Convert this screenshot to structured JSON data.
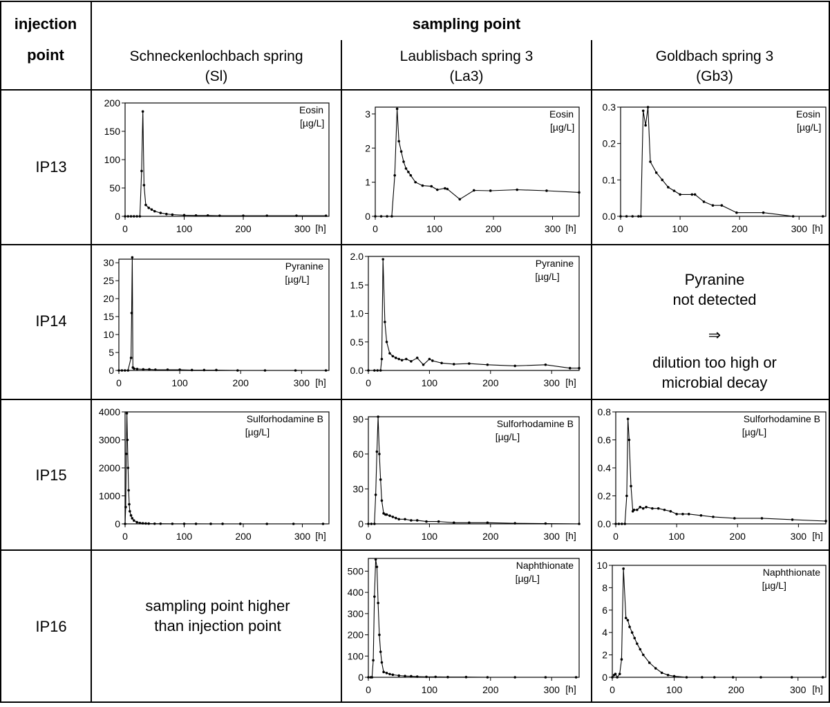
{
  "header": {
    "injection_line1": "injection",
    "injection_line2": "point",
    "sampling": "sampling point",
    "columns": [
      {
        "line1": "Schneckenlochbach spring",
        "line2": "(Sl)"
      },
      {
        "line1": "Laublisbach spring 3",
        "line2": "(La3)"
      },
      {
        "line1": "Goldbach spring 3",
        "line2": "(Gb3)"
      }
    ]
  },
  "rows": [
    {
      "label": "IP13"
    },
    {
      "label": "IP14"
    },
    {
      "label": "IP15"
    },
    {
      "label": "IP16"
    }
  ],
  "notes": {
    "pyranine_line1": "Pyranine",
    "pyranine_line2": "not detected",
    "arrow": "⇒",
    "pyranine_line3": "dilution too high or",
    "pyranine_line4": "microbial decay",
    "ip16_line1": "sampling point higher",
    "ip16_line2": "than injection point"
  },
  "chart_data": [
    {
      "id": "ip13_sl",
      "type": "line",
      "tracer": "Eosin",
      "unit": "[µg/L]",
      "xunit": "[h]",
      "xlim": [
        0,
        345
      ],
      "ylim": [
        0,
        200
      ],
      "xticks": [
        0,
        100,
        200,
        300
      ],
      "yticks": [
        0,
        50,
        100,
        150,
        200
      ],
      "x": [
        0,
        5,
        10,
        15,
        20,
        25,
        28,
        30,
        32,
        35,
        40,
        45,
        50,
        60,
        70,
        80,
        100,
        120,
        140,
        160,
        200,
        240,
        290,
        340
      ],
      "y": [
        0,
        0,
        0,
        0,
        0,
        0,
        80,
        185,
        55,
        20,
        15,
        12,
        9,
        6,
        4,
        3,
        2,
        1.5,
        1.5,
        1,
        1,
        1,
        1,
        1
      ]
    },
    {
      "id": "ip13_la3",
      "type": "line",
      "tracer": "Eosin",
      "unit": "[µg/L]",
      "xunit": "[h]",
      "xlim": [
        0,
        345
      ],
      "ylim": [
        0,
        3.2
      ],
      "xticks": [
        0,
        100,
        200,
        300
      ],
      "yticks": [
        0,
        1,
        2,
        3
      ],
      "x": [
        0,
        10,
        20,
        28,
        33,
        37,
        40,
        44,
        48,
        52,
        56,
        60,
        68,
        80,
        95,
        105,
        118,
        122,
        143,
        167,
        195,
        240,
        290,
        345
      ],
      "y": [
        0,
        0,
        0,
        0,
        1.2,
        3.15,
        2.2,
        1.9,
        1.6,
        1.4,
        1.3,
        1.2,
        1.0,
        0.9,
        0.88,
        0.78,
        0.82,
        0.8,
        0.5,
        0.76,
        0.75,
        0.78,
        0.75,
        0.7
      ]
    },
    {
      "id": "ip13_gb3",
      "type": "line",
      "tracer": "Eosin",
      "unit": "[µg/L]",
      "xunit": "[h]",
      "xlim": [
        0,
        345
      ],
      "ylim": [
        0,
        0.3
      ],
      "xticks": [
        0,
        100,
        200,
        300
      ],
      "yticks": [
        0.0,
        0.1,
        0.2,
        0.3
      ],
      "decimals": 1,
      "x": [
        0,
        10,
        20,
        30,
        34,
        38,
        42,
        46,
        50,
        60,
        70,
        80,
        90,
        100,
        120,
        125,
        140,
        155,
        170,
        195,
        240,
        290,
        340
      ],
      "y": [
        0,
        0,
        0,
        0,
        0,
        0.29,
        0.25,
        0.3,
        0.15,
        0.12,
        0.1,
        0.08,
        0.07,
        0.06,
        0.06,
        0.06,
        0.04,
        0.03,
        0.03,
        0.01,
        0.01,
        0,
        0
      ]
    },
    {
      "id": "ip14_sl",
      "type": "line",
      "tracer": "Pyranine",
      "unit": "[µg/L]",
      "xunit": "[h]",
      "xlim": [
        0,
        345
      ],
      "ylim": [
        0,
        31
      ],
      "xticks": [
        0,
        100,
        200,
        300
      ],
      "yticks": [
        0,
        5,
        10,
        15,
        20,
        25,
        30
      ],
      "x": [
        0,
        5,
        10,
        15,
        20,
        21,
        22,
        23,
        25,
        30,
        40,
        50,
        60,
        80,
        100,
        120,
        140,
        160,
        195,
        240,
        290,
        340
      ],
      "y": [
        0,
        0,
        0,
        0,
        3.5,
        16,
        31.5,
        0.8,
        0.5,
        0.4,
        0.3,
        0.3,
        0.2,
        0.2,
        0.2,
        0.1,
        0.1,
        0.1,
        0,
        0,
        0,
        0
      ]
    },
    {
      "id": "ip14_la3",
      "type": "line",
      "tracer": "Pyranine",
      "unit": "[µg/L]",
      "xunit": "[h]",
      "xlim": [
        0,
        345
      ],
      "ylim": [
        0,
        2.0
      ],
      "xticks": [
        0,
        100,
        200,
        300
      ],
      "yticks": [
        0.0,
        0.5,
        1.0,
        1.5,
        2.0
      ],
      "decimals": 1,
      "x": [
        0,
        10,
        15,
        20,
        22,
        24,
        27,
        30,
        35,
        40,
        45,
        50,
        55,
        62,
        70,
        80,
        90,
        100,
        105,
        120,
        140,
        165,
        195,
        240,
        290,
        330,
        345
      ],
      "y": [
        0,
        0,
        0,
        0,
        0.2,
        1.95,
        0.85,
        0.5,
        0.3,
        0.25,
        0.22,
        0.2,
        0.18,
        0.2,
        0.16,
        0.22,
        0.1,
        0.2,
        0.17,
        0.13,
        0.11,
        0.12,
        0.1,
        0.08,
        0.1,
        0.04,
        0.04
      ]
    },
    {
      "id": "ip15_sl",
      "type": "line",
      "tracer": "Sulforhodamine B",
      "unit": "[µg/L]",
      "xunit": "[h]",
      "xlim": [
        0,
        345
      ],
      "ylim": [
        0,
        4000
      ],
      "xticks": [
        0,
        100,
        200,
        300
      ],
      "yticks": [
        0,
        1000,
        2000,
        3000,
        4000
      ],
      "x": [
        0,
        1,
        2,
        3,
        4,
        5,
        6,
        7,
        8,
        10,
        12,
        15,
        20,
        25,
        30,
        35,
        40,
        50,
        60,
        80,
        100,
        120,
        145,
        165,
        195,
        240,
        285,
        335
      ],
      "y": [
        0,
        600,
        2500,
        3950,
        3000,
        2000,
        1200,
        700,
        450,
        300,
        200,
        120,
        60,
        30,
        20,
        15,
        10,
        5,
        5,
        3,
        2,
        2,
        1,
        1,
        1,
        0,
        0,
        0
      ]
    },
    {
      "id": "ip15_la3",
      "type": "line",
      "tracer": "Sulforhodamine B",
      "unit": "[µg/L]",
      "xunit": "[h]",
      "xlim": [
        0,
        345
      ],
      "ylim": [
        0,
        92
      ],
      "xticks": [
        0,
        100,
        200,
        300
      ],
      "yticks": [
        0,
        30,
        60,
        90
      ],
      "x": [
        0,
        5,
        10,
        12,
        14,
        16,
        18,
        20,
        22,
        25,
        28,
        30,
        35,
        40,
        45,
        50,
        60,
        70,
        80,
        95,
        115,
        140,
        165,
        195,
        240,
        290,
        345
      ],
      "y": [
        0,
        0,
        0,
        25,
        62,
        92,
        60,
        38,
        20,
        9,
        8,
        8,
        7,
        6,
        5,
        4,
        4,
        3,
        3,
        2,
        2,
        1,
        1,
        1,
        0.5,
        0.3,
        0
      ]
    },
    {
      "id": "ip15_gb3",
      "type": "line",
      "tracer": "Sulforhodamine B",
      "unit": "[µg/L]",
      "xunit": "[h]",
      "xlim": [
        0,
        345
      ],
      "ylim": [
        0,
        0.8
      ],
      "xticks": [
        0,
        100,
        200,
        300
      ],
      "yticks": [
        0.0,
        0.2,
        0.4,
        0.6,
        0.8
      ],
      "decimals": 1,
      "x": [
        0,
        5,
        10,
        15,
        18,
        20,
        22,
        25,
        28,
        30,
        35,
        40,
        45,
        50,
        60,
        70,
        80,
        90,
        100,
        110,
        120,
        140,
        160,
        195,
        240,
        290,
        345
      ],
      "y": [
        0,
        0,
        0,
        0,
        0.2,
        0.75,
        0.6,
        0.27,
        0.09,
        0.1,
        0.1,
        0.12,
        0.11,
        0.12,
        0.11,
        0.11,
        0.1,
        0.09,
        0.07,
        0.07,
        0.07,
        0.06,
        0.05,
        0.04,
        0.04,
        0.03,
        0.02
      ]
    },
    {
      "id": "ip16_la3",
      "type": "line",
      "tracer": "Naphthionate",
      "unit": "[µg/L]",
      "xunit": "[h]",
      "xlim": [
        0,
        345
      ],
      "ylim": [
        0,
        560
      ],
      "xticks": [
        0,
        100,
        200,
        300
      ],
      "yticks": [
        0,
        100,
        200,
        300,
        400,
        500
      ],
      "x": [
        0,
        4,
        6,
        8,
        10,
        12,
        14,
        16,
        18,
        20,
        22,
        25,
        30,
        35,
        40,
        50,
        60,
        70,
        80,
        95,
        110,
        130,
        160,
        195,
        240,
        290,
        340
      ],
      "y": [
        0,
        0,
        0,
        80,
        380,
        555,
        520,
        350,
        200,
        120,
        70,
        25,
        20,
        15,
        12,
        8,
        6,
        5,
        3,
        2,
        2,
        1,
        1,
        0,
        0,
        0,
        0
      ]
    },
    {
      "id": "ip16_gb3",
      "type": "line",
      "tracer": "Naphthionate",
      "unit": "[µg/L]",
      "xunit": "[h]",
      "xlim": [
        0,
        345
      ],
      "ylim": [
        0,
        10
      ],
      "xticks": [
        0,
        100,
        200,
        300
      ],
      "yticks": [
        0,
        2,
        4,
        6,
        8,
        10
      ],
      "x": [
        0,
        3,
        5,
        8,
        12,
        15,
        18,
        22,
        25,
        28,
        32,
        36,
        40,
        45,
        50,
        60,
        70,
        80,
        90,
        100,
        120,
        145,
        165,
        195,
        240,
        290,
        340
      ],
      "y": [
        0,
        0.2,
        0.3,
        0,
        0.3,
        1.6,
        9.7,
        5.3,
        5.1,
        4.5,
        4.0,
        3.5,
        3.0,
        2.5,
        2.0,
        1.3,
        0.8,
        0.4,
        0.2,
        0.1,
        0,
        0,
        0,
        0,
        0,
        0,
        0
      ]
    }
  ]
}
